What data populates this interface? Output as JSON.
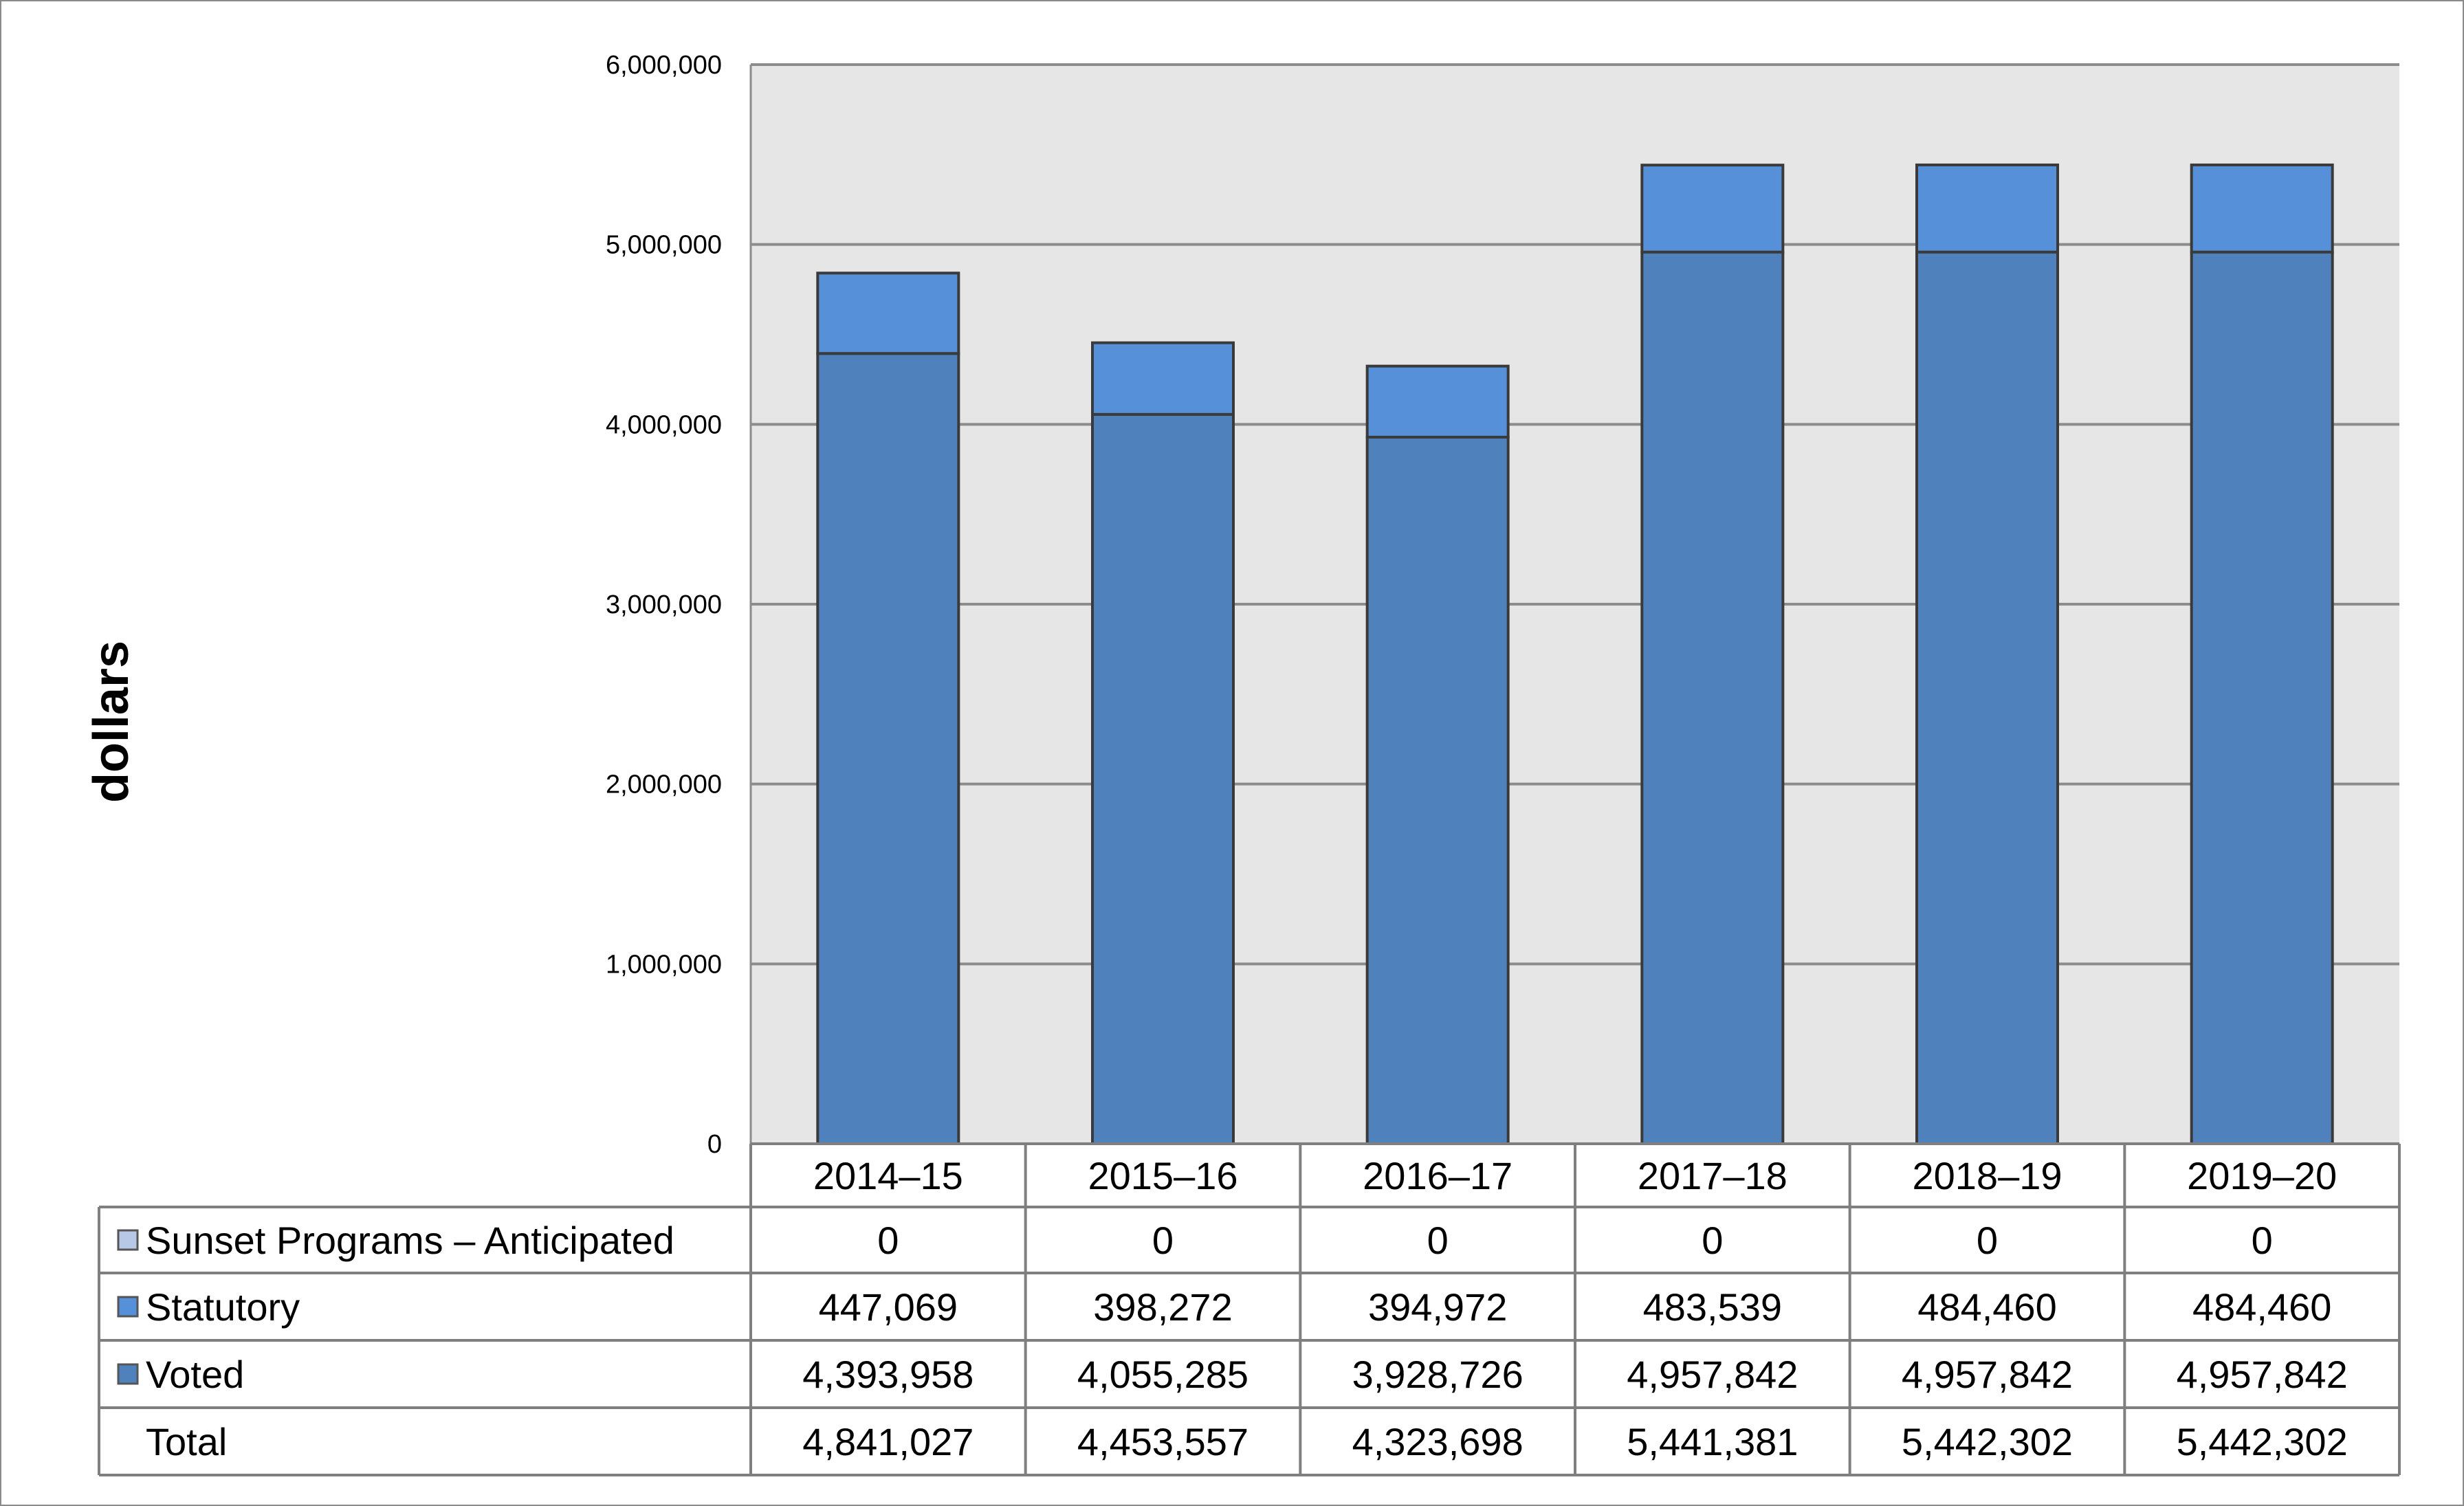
{
  "chart_data": {
    "type": "bar",
    "stacked": true,
    "ylabel": "dollars",
    "ylim": [
      0,
      6000000
    ],
    "yticks": [
      "0",
      "1,000,000",
      "2,000,000",
      "3,000,000",
      "4,000,000",
      "5,000,000",
      "6,000,000"
    ],
    "ytick_values": [
      0,
      1000000,
      2000000,
      3000000,
      4000000,
      5000000,
      6000000
    ],
    "grid": true,
    "legend": "data-table",
    "categories": [
      "2014–15",
      "2015–16",
      "2016–17",
      "2017–18",
      "2018–19",
      "2019–20"
    ],
    "series": [
      {
        "name": "Sunset Programs – Anticipated",
        "color": "#b7c8e6",
        "values": [
          0,
          0,
          0,
          0,
          0,
          0
        ],
        "labels": [
          "0",
          "0",
          "0",
          "0",
          "0",
          "0"
        ]
      },
      {
        "name": "Statutory",
        "color": "#5590d8",
        "values": [
          447069,
          398272,
          394972,
          483539,
          484460,
          484460
        ],
        "labels": [
          "447,069",
          "398,272",
          "394,972",
          "483,539",
          "484,460",
          "484,460"
        ]
      },
      {
        "name": "Voted",
        "color": "#4f81bd",
        "values": [
          4393958,
          4055285,
          3928726,
          4957842,
          4957842,
          4957842
        ],
        "labels": [
          "4,393,958",
          "4,055,285",
          "3,928,726",
          "4,957,842",
          "4,957,842",
          "4,957,842"
        ]
      }
    ],
    "total": {
      "name": "Total",
      "values": [
        4841027,
        4453557,
        4323698,
        5441381,
        5442302,
        5442302
      ],
      "labels": [
        "4,841,027",
        "4,453,557",
        "4,323,698",
        "5,441,381",
        "5,442,302",
        "5,442,302"
      ]
    }
  },
  "colors": {
    "plot_background": "#e6e6e6",
    "gridline": "#8c8c8c",
    "bar_outline": "#3a3a3a",
    "table_border": "#7f7f7f"
  }
}
